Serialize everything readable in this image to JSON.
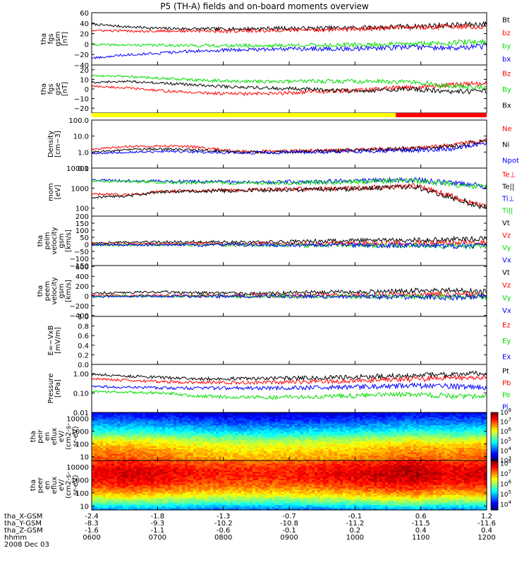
{
  "title": "P5 (TH-A) fields and on-board moments overview",
  "colors": {
    "black": "#000000",
    "red": "#ff0000",
    "green": "#00dd00",
    "blue": "#0000ff",
    "yellow": "#ffff00"
  },
  "chart_data": [
    {
      "id": "fgs_gsm",
      "type": "line",
      "ylabel": [
        "tha",
        "fgs",
        "gsm",
        "[nT]"
      ],
      "yticks": [
        {
          "v": 60,
          "t": "60"
        },
        {
          "v": 40,
          "t": "40"
        },
        {
          "v": 20,
          "t": "20"
        },
        {
          "v": 0,
          "t": "0"
        },
        {
          "v": -20,
          "t": "−20"
        },
        {
          "v": -40,
          "t": "−40"
        }
      ],
      "ylim": [
        -40,
        60
      ],
      "log": false,
      "series": [
        {
          "name": "Bt",
          "color": "#000000",
          "values": [
            38,
            33,
            30,
            29,
            29,
            30,
            30,
            31,
            32,
            34,
            36,
            38
          ]
        },
        {
          "name": "bz",
          "color": "#ff0000",
          "values": [
            26,
            25,
            25,
            25,
            25,
            26,
            27,
            28,
            30,
            32,
            34,
            34
          ]
        },
        {
          "name": "by",
          "color": "#00dd00",
          "values": [
            -1,
            -2,
            -2,
            -3,
            -3,
            -3,
            -2,
            -2,
            -1,
            0,
            3,
            4
          ]
        },
        {
          "name": "bx",
          "color": "#0000ff",
          "values": [
            -27,
            -20,
            -17,
            -13,
            -11,
            -10,
            -9,
            -9,
            -8,
            -6,
            -8,
            -4
          ]
        }
      ]
    },
    {
      "id": "fgs_gse",
      "type": "line",
      "ylabel": [
        "tha",
        "fgs",
        "gse",
        "[nT]"
      ],
      "yticks": [
        {
          "v": 20,
          "t": "20"
        },
        {
          "v": 10,
          "t": "10"
        },
        {
          "v": 0,
          "t": "0"
        },
        {
          "v": -10,
          "t": "−10"
        },
        {
          "v": -20,
          "t": "−20"
        }
      ],
      "ylim": [
        -25,
        25
      ],
      "log": false,
      "series": [
        {
          "name": "Bz",
          "color": "#ff0000",
          "values": [
            3,
            1,
            -2,
            -4,
            -5,
            -5,
            -3,
            -2,
            0,
            2,
            4,
            6
          ]
        },
        {
          "name": "By",
          "color": "#00dd00",
          "values": [
            14,
            13,
            11,
            9,
            8,
            8,
            8,
            8,
            8,
            7,
            3,
            2
          ]
        },
        {
          "name": "Bx",
          "color": "#000000",
          "values": [
            7,
            8,
            6,
            4,
            2,
            1,
            0,
            -2,
            -1,
            0,
            -3,
            -2
          ]
        }
      ]
    },
    {
      "id": "density",
      "type": "line",
      "ylabel": [
        "Density",
        "[cm−3]"
      ],
      "yticks": [
        {
          "v": 100,
          "t": "100.0"
        },
        {
          "v": 10,
          "t": "10.0"
        },
        {
          "v": 1,
          "t": "1.0"
        },
        {
          "v": 0.1,
          "t": "0.1"
        }
      ],
      "ylim": [
        0.1,
        100
      ],
      "log": true,
      "series": [
        {
          "name": "Ne",
          "color": "#ff0000",
          "values": [
            1.5,
            2.2,
            2.5,
            2.0,
            1.1,
            1.1,
            1.2,
            1.3,
            1.5,
            1.8,
            2.5,
            6
          ]
        },
        {
          "name": "Ni",
          "color": "#000000",
          "values": [
            1.0,
            1.4,
            1.6,
            1.3,
            1.0,
            1.0,
            1.1,
            1.2,
            1.4,
            1.6,
            2.2,
            5
          ]
        },
        {
          "name": "Npot",
          "color": "#0000ff",
          "values": [
            0.8,
            1.0,
            1.1,
            1.0,
            0.9,
            0.9,
            1.0,
            1.1,
            1.2,
            1.3,
            1.6,
            4
          ]
        }
      ]
    },
    {
      "id": "temperature",
      "type": "line",
      "ylabel": [
        "mom",
        "[eV]"
      ],
      "yticks": [
        {
          "v": 10000,
          "t": "10000"
        },
        {
          "v": 1000,
          "t": "1000"
        },
        {
          "v": 100,
          "t": "100"
        }
      ],
      "ylim": [
        40,
        10000
      ],
      "log": true,
      "series": [
        {
          "name": "Te⊥",
          "color": "#ff0000",
          "values": [
            500,
            450,
            700,
            750,
            800,
            850,
            900,
            950,
            1100,
            1300,
            400,
            120
          ]
        },
        {
          "name": "Te||",
          "color": "#000000",
          "values": [
            350,
            400,
            650,
            700,
            750,
            800,
            850,
            900,
            1000,
            1200,
            350,
            100
          ]
        },
        {
          "name": "Ti⊥",
          "color": "#0000ff",
          "values": [
            2500,
            2300,
            2200,
            2100,
            2000,
            2000,
            2100,
            2200,
            2400,
            2600,
            1800,
            1200
          ]
        },
        {
          "name": "Ti||",
          "color": "#00dd00",
          "values": [
            2200,
            2100,
            2000,
            1900,
            1800,
            1800,
            1900,
            2000,
            2200,
            2400,
            1600,
            1100
          ]
        }
      ]
    },
    {
      "id": "peim_velocity",
      "type": "line",
      "ylabel": [
        "tha",
        "peim",
        "velocity",
        "gsm",
        "[km/s]"
      ],
      "yticks": [
        {
          "v": 200,
          "t": "200"
        },
        {
          "v": 150,
          "t": "150"
        },
        {
          "v": 100,
          "t": "100"
        },
        {
          "v": 50,
          "t": "50"
        },
        {
          "v": 0,
          "t": "0"
        },
        {
          "v": -50,
          "t": "−50"
        },
        {
          "v": -100,
          "t": "−100"
        },
        {
          "v": -150,
          "t": "−150"
        }
      ],
      "ylim": [
        -150,
        200
      ],
      "log": false,
      "series": [
        {
          "name": "Vt",
          "color": "#000000",
          "values": [
            12,
            14,
            16,
            18,
            15,
            17,
            22,
            25,
            28,
            30,
            35,
            40
          ]
        },
        {
          "name": "Vz",
          "color": "#ff0000",
          "values": [
            2,
            4,
            3,
            5,
            2,
            4,
            5,
            6,
            8,
            10,
            12,
            14
          ]
        },
        {
          "name": "Vy",
          "color": "#00dd00",
          "values": [
            -4,
            -6,
            -5,
            -3,
            -6,
            -4,
            -8,
            -5,
            -10,
            -8,
            -15,
            -10
          ]
        },
        {
          "name": "Vx",
          "color": "#0000ff",
          "values": [
            -2,
            -4,
            -3,
            -6,
            -2,
            -5,
            -6,
            -4,
            -8,
            -6,
            -12,
            -8
          ]
        }
      ]
    },
    {
      "id": "peem_velocity",
      "type": "line",
      "ylabel": [
        "tha",
        "peem",
        "velocity",
        "gsm",
        "[km/s]"
      ],
      "yticks": [
        {
          "v": 600,
          "t": "600"
        },
        {
          "v": 400,
          "t": "400"
        },
        {
          "v": 200,
          "t": "200"
        },
        {
          "v": 0,
          "t": "0"
        },
        {
          "v": -200,
          "t": "−200"
        },
        {
          "v": -400,
          "t": "−400"
        }
      ],
      "ylim": [
        -420,
        620
      ],
      "log": false,
      "series": [
        {
          "name": "Vt",
          "color": "#000000",
          "values": [
            60,
            70,
            80,
            60,
            55,
            60,
            70,
            80,
            90,
            110,
            120,
            80
          ]
        },
        {
          "name": "Vz",
          "color": "#ff0000",
          "values": [
            5,
            10,
            8,
            6,
            5,
            8,
            10,
            12,
            15,
            20,
            30,
            20
          ]
        },
        {
          "name": "Vy",
          "color": "#00dd00",
          "values": [
            -10,
            -5,
            -8,
            -6,
            -10,
            -5,
            -8,
            -10,
            -12,
            -15,
            -20,
            -10
          ]
        },
        {
          "name": "Vx",
          "color": "#0000ff",
          "values": [
            -15,
            -10,
            -12,
            -8,
            -12,
            -10,
            -15,
            -12,
            -20,
            -25,
            -35,
            -20
          ]
        }
      ]
    },
    {
      "id": "efield",
      "type": "line",
      "ylabel": [
        "E=−VxB",
        "[mV/m]"
      ],
      "yticks": [
        {
          "v": 1.0,
          "t": "1.0"
        },
        {
          "v": 0.8,
          "t": "0.8"
        },
        {
          "v": 0.6,
          "t": "0.6"
        },
        {
          "v": 0.4,
          "t": "0.4"
        },
        {
          "v": 0.2,
          "t": "0.2"
        },
        {
          "v": 0.0,
          "t": "0.0"
        }
      ],
      "ylim": [
        0,
        1
      ],
      "log": false,
      "series": [
        {
          "name": "Ez",
          "color": "#ff0000",
          "values": []
        },
        {
          "name": "Ey",
          "color": "#00dd00",
          "values": []
        },
        {
          "name": "Ex",
          "color": "#0000ff",
          "values": []
        }
      ]
    },
    {
      "id": "pressure",
      "type": "line",
      "ylabel": [
        "Pressure",
        "[nPa]"
      ],
      "yticks": [
        {
          "v": 1,
          "t": "1.00"
        },
        {
          "v": 0.1,
          "t": "0.10"
        },
        {
          "v": 0.01,
          "t": "0.01"
        }
      ],
      "ylim": [
        0.01,
        3
      ],
      "log": true,
      "series": [
        {
          "name": "Pt",
          "color": "#000000",
          "values": [
            0.95,
            0.75,
            0.62,
            0.55,
            0.55,
            0.57,
            0.6,
            0.65,
            0.72,
            0.8,
            0.9,
            1.0
          ]
        },
        {
          "name": "Pb",
          "color": "#ff0000",
          "values": [
            0.55,
            0.45,
            0.38,
            0.35,
            0.35,
            0.36,
            0.38,
            0.42,
            0.46,
            0.52,
            0.6,
            0.7
          ]
        },
        {
          "name": "Pe",
          "color": "#00dd00",
          "values": [
            0.12,
            0.11,
            0.1,
            0.07,
            0.06,
            0.06,
            0.065,
            0.07,
            0.08,
            0.09,
            0.07,
            0.06
          ]
        },
        {
          "name": "Pi",
          "color": "#0000ff",
          "values": [
            0.22,
            0.2,
            0.18,
            0.18,
            0.18,
            0.18,
            0.19,
            0.2,
            0.22,
            0.24,
            0.22,
            0.2
          ]
        }
      ]
    },
    {
      "id": "peir_spec",
      "type": "heatmap",
      "ylabel": [
        "tha",
        "peir",
        "en",
        "eflux",
        "eV/",
        "(cm2-s-",
        "sr-eV)"
      ],
      "yticks": [
        {
          "v": 10000,
          "t": "10000"
        },
        {
          "v": 1000,
          "t": "1000"
        },
        {
          "v": 100,
          "t": "100"
        },
        {
          "v": 10,
          "t": "10"
        }
      ],
      "ylim": [
        5,
        30000
      ],
      "log": true,
      "colorbar": {
        "ticks": [
          {
            "e": 8
          },
          {
            "e": 7
          },
          {
            "e": 6
          },
          {
            "e": 5
          },
          {
            "e": 4
          },
          {
            "e": 3
          }
        ],
        "lim": [
          3,
          8
        ]
      },
      "profile": [
        7.0,
        6.8,
        6.5,
        6.0,
        5.2,
        4.6,
        4.1,
        3.6
      ],
      "time_factor": [
        1.0,
        1.0,
        0.98,
        0.95,
        0.93,
        0.93,
        0.94,
        0.95,
        0.97,
        1.0,
        0.98,
        1.0
      ]
    },
    {
      "id": "peer_spec",
      "type": "heatmap",
      "ylabel": [
        "tha",
        "peer",
        "en",
        "eflux",
        "eV/",
        "(cm2-s-",
        "sr-eV)"
      ],
      "yticks": [
        {
          "v": 10000,
          "t": "10000"
        },
        {
          "v": 1000,
          "t": "1000"
        },
        {
          "v": 100,
          "t": "100"
        },
        {
          "v": 10,
          "t": "10"
        }
      ],
      "ylim": [
        5,
        30000
      ],
      "log": true,
      "colorbar": {
        "ticks": [
          {
            "e": 8
          },
          {
            "e": 7
          },
          {
            "e": 6
          },
          {
            "e": 5
          },
          {
            "e": 4
          }
        ],
        "lim": [
          3.5,
          8.3
        ]
      },
      "profile": [
        4.8,
        5.8,
        6.6,
        7.2,
        7.6,
        7.8,
        7.7,
        7.4
      ],
      "time_factor": [
        1.0,
        1.02,
        1.0,
        0.98,
        0.97,
        0.97,
        0.98,
        1.0,
        1.02,
        1.04,
        1.0,
        1.02
      ]
    }
  ],
  "mode_bar": {
    "segments": [
      {
        "color": "#ffff00",
        "from": 0,
        "to": 0.77
      },
      {
        "color": "#ff0000",
        "from": 0.77,
        "to": 1.0
      }
    ]
  },
  "x_axis": {
    "row_labels": [
      "tha_X-GSM",
      "tha_Y-GSM",
      "tha_Z-GSM",
      "hhmm",
      "2008 Dec 03"
    ],
    "ticks": [
      {
        "x": -2.4,
        "y": -8.3,
        "z": -1.6,
        "t": "0600"
      },
      {
        "x": -1.8,
        "y": -9.3,
        "z": -1.1,
        "t": "0700"
      },
      {
        "x": -1.3,
        "y": -10.2,
        "z": -0.6,
        "t": "0800"
      },
      {
        "x": -0.7,
        "y": -10.8,
        "z": -0.1,
        "t": "0900"
      },
      {
        "x": -0.1,
        "y": -11.2,
        "z": 0.2,
        "t": "1000"
      },
      {
        "x": 0.6,
        "y": -11.5,
        "z": 0.4,
        "t": "1100"
      },
      {
        "x": 1.2,
        "y": -11.6,
        "z": 0.4,
        "t": "1200"
      }
    ]
  }
}
